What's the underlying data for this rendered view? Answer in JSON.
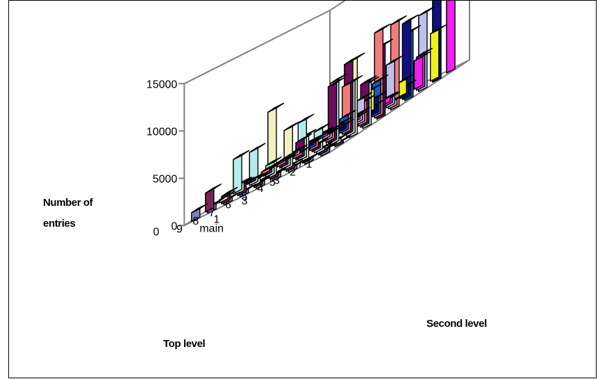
{
  "chart_data": {
    "type": "bar3d",
    "zlabel": "Number of\nentries",
    "xlabel": "Top level",
    "ylabel": "Second level",
    "zlim": [
      0,
      15000
    ],
    "z_ticks": [
      "0",
      "5000",
      "10000",
      "15000"
    ],
    "top_levels": [
      "1",
      "2",
      "3",
      "4",
      "5",
      "6",
      "7",
      "8",
      "9"
    ],
    "second_levels": [
      "main",
      "1",
      "2",
      "3",
      "4",
      "5",
      "6",
      "7",
      "8",
      "9"
    ],
    "second_level_tick_labels": [
      "main",
      "1",
      "3",
      "5",
      "7",
      "9"
    ],
    "values": [
      [
        500,
        250,
        8000,
        4500,
        7500,
        9000,
        7000,
        8000,
        10000,
        13500
      ],
      [
        350,
        200,
        400,
        5500,
        4500,
        9000,
        600,
        8000,
        3500,
        5000
      ],
      [
        350,
        100,
        300,
        6500,
        7500,
        2300,
        3500,
        4500,
        1000,
        3000
      ],
      [
        600,
        400,
        2500,
        2200,
        6000,
        5000,
        2500,
        1600,
        600,
        1500
      ],
      [
        600,
        250,
        4200,
        4000,
        500,
        1000,
        1500,
        800,
        600,
        500
      ],
      [
        400,
        200,
        7000,
        1000,
        1800,
        900,
        500,
        400,
        300,
        2200
      ],
      [
        400,
        1000,
        500,
        1200,
        500,
        300,
        400,
        300,
        500,
        300
      ],
      [
        600,
        800,
        900,
        3500,
        400,
        300,
        400,
        300,
        300,
        200
      ],
      [
        900,
        2000,
        300,
        3600,
        200,
        300,
        200,
        200,
        200,
        200
      ]
    ],
    "bar_colors": [
      "#8080c8",
      "#7a2450",
      "#f0f0c0",
      "#b4ecec",
      "#6a0d5a",
      "#f07c7c",
      "#1060d0",
      "#c0c0ee",
      "#101080",
      "#f020f0",
      "#f0f020"
    ],
    "grid": false,
    "legend": "none"
  }
}
